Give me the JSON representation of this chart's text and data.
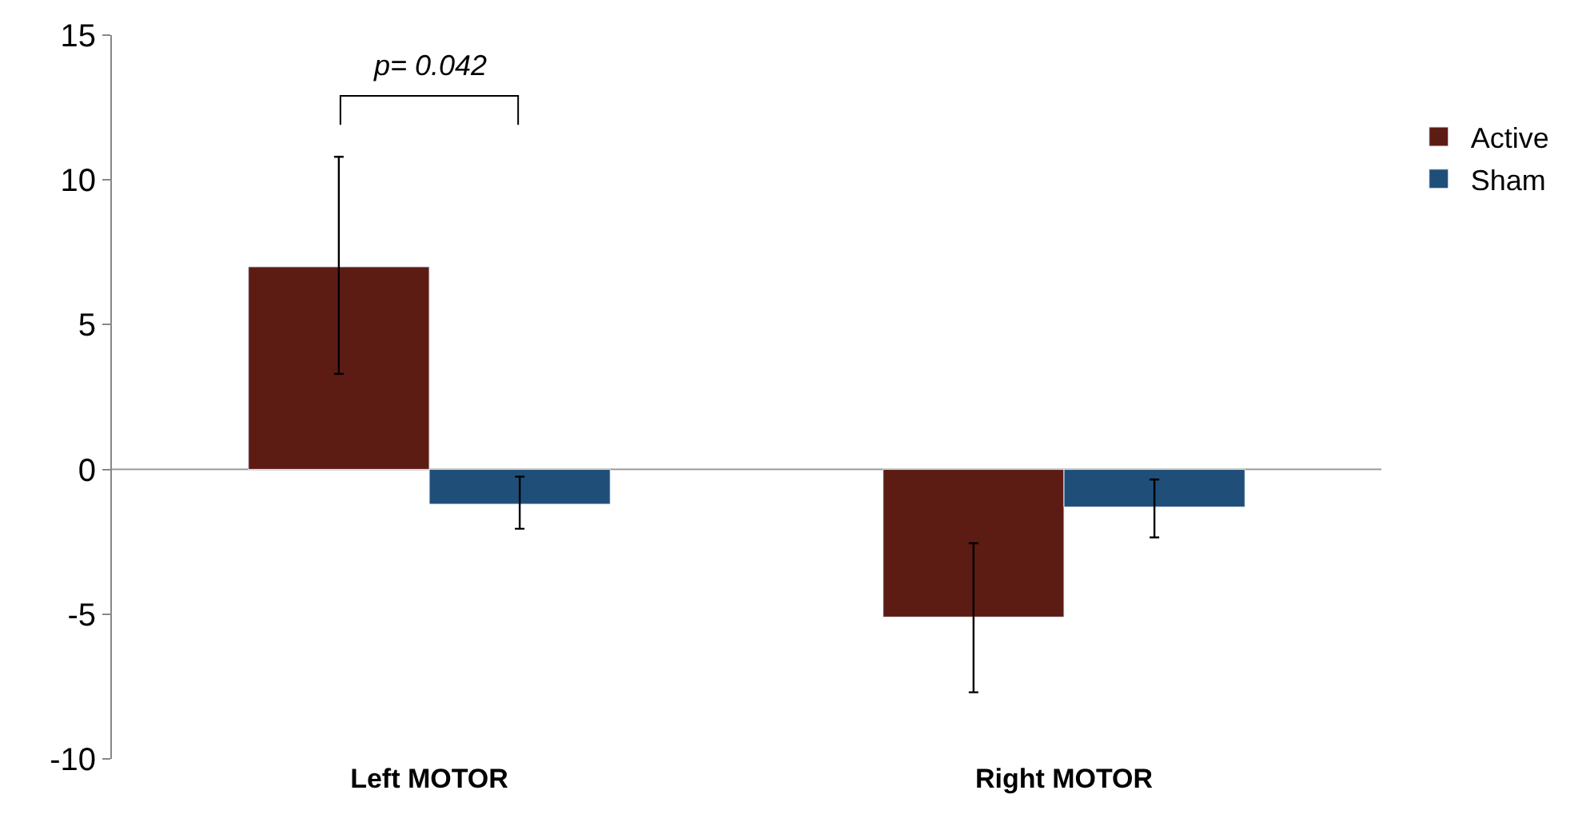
{
  "chart_data": {
    "type": "bar",
    "categories": [
      "Left MOTOR",
      "Right MOTOR"
    ],
    "series": [
      {
        "name": "Active",
        "color": "#5c1c14",
        "values": [
          7.0,
          -5.1
        ],
        "errors": [
          [
            3.3,
            10.8
          ],
          [
            -7.7,
            -2.55
          ]
        ]
      },
      {
        "name": "Sham",
        "color": "#1f4e79",
        "values": [
          -1.2,
          -1.3
        ],
        "errors": [
          [
            -2.05,
            -0.25
          ],
          [
            -2.35,
            -0.35
          ]
        ]
      }
    ],
    "ylim": [
      -10,
      15
    ],
    "yticks": [
      -10,
      -5,
      0,
      5,
      10,
      15
    ],
    "annotations": [
      "p= 0.042"
    ],
    "ref_lines": [
      {
        "axis": "y",
        "value": 0,
        "color": "#999999"
      }
    ],
    "grid": false,
    "legend": "right"
  }
}
